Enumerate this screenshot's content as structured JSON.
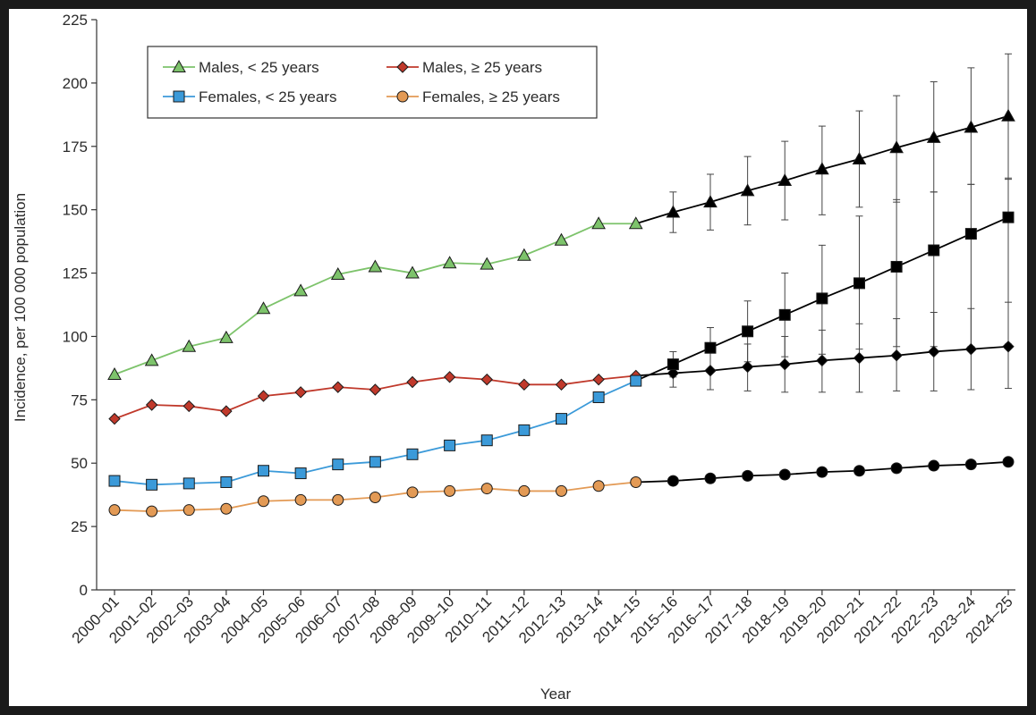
{
  "chart_data": {
    "type": "line",
    "title": "",
    "xlabel": "Year",
    "ylabel": "Incidence, per 100 000 population",
    "ylim": [
      0,
      225
    ],
    "yticks": [
      0,
      25,
      50,
      75,
      100,
      125,
      150,
      175,
      200,
      225
    ],
    "grid": false,
    "legend_position": "top-left",
    "categories": [
      "2000–01",
      "2001–02",
      "2002–03",
      "2003–04",
      "2004–05",
      "2005–06",
      "2006–07",
      "2007–08",
      "2008–09",
      "2009–10",
      "2010–11",
      "2011–12",
      "2012–13",
      "2013–14",
      "2014–15",
      "2015–16",
      "2016–17",
      "2017–18",
      "2018–19",
      "2019–20",
      "2020–21",
      "2021–22",
      "2022–23",
      "2023–24",
      "2024–25"
    ],
    "observed_count": 15,
    "projection_color": "#000000",
    "series": [
      {
        "name": "Males, < 25 years",
        "marker": "triangle",
        "color": "#7dc36b",
        "line_color": "#7dc36b",
        "values": [
          85,
          90.5,
          96,
          99.5,
          111,
          118,
          124.5,
          127.5,
          125,
          129,
          128.5,
          132,
          138,
          144.5,
          144.5,
          149,
          153,
          157.5,
          161.5,
          166,
          170,
          174.5,
          178.5,
          182.5,
          187
        ],
        "error_low": [
          141,
          142,
          144,
          146,
          148,
          151,
          153,
          157,
          160,
          162
        ],
        "error_high": [
          157,
          164,
          171,
          177,
          183,
          189,
          195,
          200.5,
          206,
          211.5
        ]
      },
      {
        "name": "Males, ≥ 25 years",
        "marker": "diamond",
        "color": "#c0392b",
        "line_color": "#c0392b",
        "values": [
          67.5,
          73,
          72.5,
          70.5,
          76.5,
          78,
          80,
          79,
          82,
          84,
          83,
          81,
          81,
          83,
          84.5,
          85.5,
          86.5,
          88,
          89,
          90.5,
          91.5,
          92.5,
          94,
          95,
          96
        ],
        "error_low": [
          80,
          79,
          78.5,
          78,
          78,
          78,
          78.5,
          78.5,
          79,
          79.5
        ],
        "error_high": [
          91,
          95,
          97,
          100,
          102.5,
          105,
          107,
          109.5,
          111,
          113.5
        ]
      },
      {
        "name": "Females, < 25 years",
        "marker": "square",
        "color": "#3b9ad9",
        "line_color": "#3b9ad9",
        "values": [
          43,
          41.5,
          42,
          42.5,
          47,
          46,
          49.5,
          50.5,
          53.5,
          57,
          59,
          63,
          67.5,
          76,
          82.5,
          89,
          95.5,
          102,
          108.5,
          115,
          121,
          127.5,
          134,
          140.5,
          147
        ],
        "error_low": [
          84,
          87,
          90,
          92,
          93,
          95,
          96,
          96,
          96,
          97
        ],
        "error_high": [
          94,
          103.5,
          114,
          125,
          136,
          147.5,
          154,
          157,
          160,
          162.5
        ]
      },
      {
        "name": "Females, ≥ 25 years",
        "marker": "circle",
        "color": "#e39a55",
        "line_color": "#e39a55",
        "values": [
          31.5,
          31,
          31.5,
          32,
          35,
          35.5,
          35.5,
          36.5,
          38.5,
          39,
          40,
          39,
          39,
          41,
          42.5,
          43,
          44,
          45,
          45.5,
          46.5,
          47,
          48,
          49,
          49.5,
          50.5
        ],
        "error_low": [
          42.5,
          43,
          44,
          44.5,
          45.5,
          46,
          47,
          48,
          48.5,
          49.5
        ],
        "error_high": [
          43.5,
          45,
          46,
          46.5,
          47.5,
          48,
          49,
          50,
          50.5,
          51.5
        ]
      }
    ]
  }
}
